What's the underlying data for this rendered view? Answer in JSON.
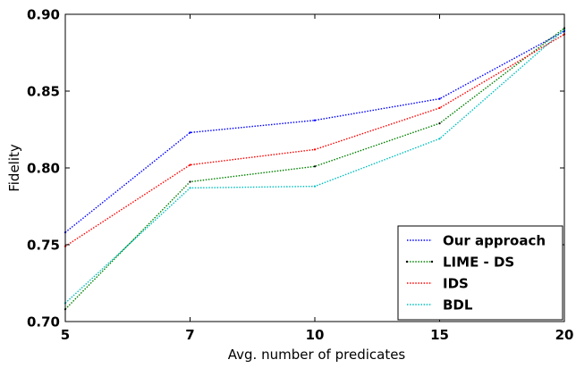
{
  "chart_data": {
    "type": "line",
    "xlabel": "Avg. number of predicates",
    "ylabel": "Fidelity",
    "x": [
      5,
      7,
      10,
      15,
      20
    ],
    "x_tick_labels": [
      "5",
      "7",
      "10",
      "15",
      "20"
    ],
    "y_tick_labels": [
      "0.70",
      "0.75",
      "0.80",
      "0.85",
      "0.90"
    ],
    "xlim_categories": [
      5,
      20
    ],
    "ylim": [
      0.7,
      0.9
    ],
    "grid": false,
    "legend_position": "lower-right",
    "series": [
      {
        "name": "Our approach",
        "color": "#0000ff",
        "values": [
          0.758,
          0.823,
          0.831,
          0.845,
          0.889
        ]
      },
      {
        "name": "LIME - DS",
        "color": "#008000",
        "values": [
          0.708,
          0.791,
          0.801,
          0.829,
          0.891
        ]
      },
      {
        "name": "IDS",
        "color": "#ff0000",
        "values": [
          0.749,
          0.802,
          0.812,
          0.839,
          0.887
        ]
      },
      {
        "name": "BDL",
        "color": "#00bfbf",
        "values": [
          0.712,
          0.787,
          0.788,
          0.819,
          0.89
        ]
      }
    ]
  }
}
